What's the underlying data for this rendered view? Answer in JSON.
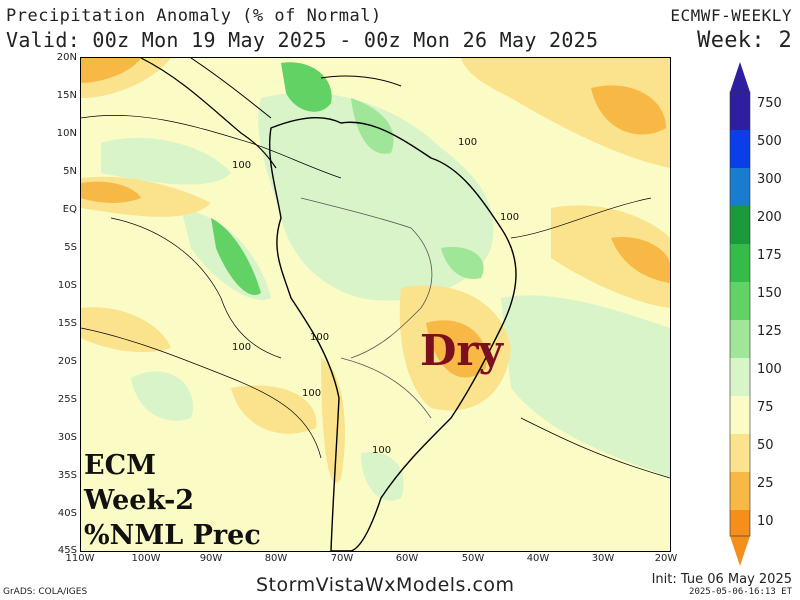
{
  "header": {
    "title": "Precipitation Anomaly (% of Normal)",
    "valid": "Valid: 00z Mon 19 May 2025 - 00z Mon 26 May 2025",
    "model": "ECMWF-WEEKLY",
    "week": "Week: 2"
  },
  "map": {
    "lat_labels": [
      "20N",
      "15N",
      "10N",
      "5N",
      "EQ",
      "5S",
      "10S",
      "15S",
      "20S",
      "25S",
      "30S",
      "35S",
      "40S",
      "45S"
    ],
    "lon_labels": [
      "110W",
      "100W",
      "90W",
      "80W",
      "70W",
      "60W",
      "50W",
      "40W",
      "30W",
      "20W"
    ],
    "annotation": "Dry",
    "annotation_color": "#7a0f1e",
    "stamp_lines": [
      "ECM",
      "Week-2",
      "%NML Prec"
    ],
    "contour_label": "100"
  },
  "legend": {
    "labels": [
      "750",
      "500",
      "300",
      "200",
      "175",
      "150",
      "125",
      "100",
      "75",
      "50",
      "25",
      "10"
    ],
    "colors": [
      "#2f1fa0",
      "#0a3ee8",
      "#1a7ccc",
      "#1a9a3a",
      "#35bb4a",
      "#62d265",
      "#9fe699",
      "#d8f4c8",
      "#fbfbc6",
      "#fbe28c",
      "#f8b845",
      "#f48f1c"
    ]
  },
  "footer": {
    "site": "StormVistaWxModels.com",
    "grads": "GrADS: COLA/IGES",
    "init": "Init: Tue 06 May 2025",
    "generated": "2025-05-06-16:13 ET"
  }
}
